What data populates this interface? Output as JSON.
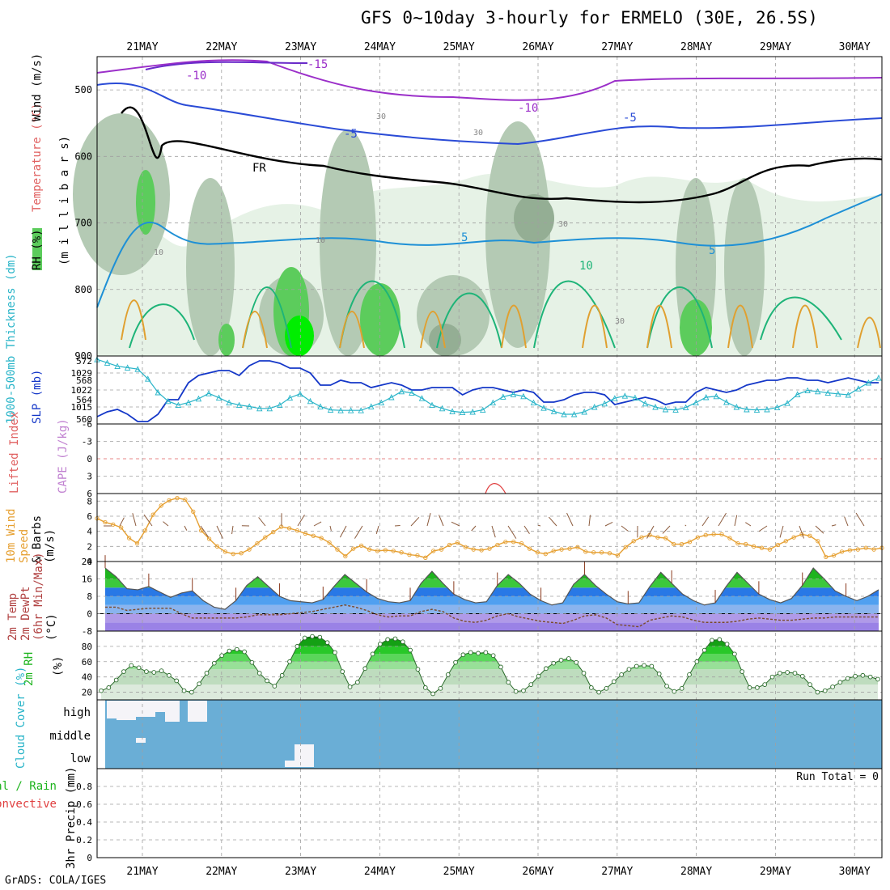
{
  "title": "GFS 0~10day 3-hourly for ERMELO (30E, 26.5S)",
  "footer": "GrADS: COLA/IGES",
  "colors": {
    "rh_light": "#e6f2e6",
    "rh_mid": "#b4cab4",
    "rh_dark": "#94ae94",
    "rh_green": "#5ccc5c",
    "rh_bright": "#00ee00",
    "frame": "#000000",
    "grid": "#a0a0a0",
    "slp": "#1437c8",
    "thickness": "#28b4c8",
    "wind_speed": "#e6a032",
    "cloud": "#6aaed6",
    "temp_fill_purple": "#b09ae8",
    "temp_fill_blue": "#2878e6",
    "temp_fill_green": "#1eb41e",
    "rh2m_dark": "#007800"
  },
  "chart_data": [
    {
      "type": "contour",
      "panel": "upper-air",
      "ylabel_parts": [
        "RH (%)",
        "Temperature (°C)",
        "Wind (m/s)"
      ],
      "ylabel_units": "(m i l l i b a r s)",
      "x_categories": [
        "21MAY",
        "22MAY",
        "23MAY",
        "24MAY",
        "25MAY",
        "26MAY",
        "27MAY",
        "28MAY",
        "29MAY",
        "30MAY"
      ],
      "y_ticks": [
        "500",
        "600",
        "700",
        "800",
        "900"
      ],
      "ylim": [
        450,
        900
      ],
      "contour_labels": [
        "-15",
        "-10",
        "-10",
        "-5",
        "-5",
        "FR",
        "5",
        "5",
        "10",
        "10",
        "10",
        "30",
        "30",
        "30",
        "30"
      ]
    },
    {
      "type": "line",
      "panel": "thickness-slp",
      "ylabel_left": "1000-500mb Thickness (dm)",
      "ylabel_right": "SLP (mb)",
      "y_ticks_thickness": [
        "572",
        "568",
        "564",
        "560"
      ],
      "y_ticks_slp": [
        "1029",
        "1022",
        "1015"
      ],
      "ylim_thickness": [
        559,
        573
      ],
      "ylim_slp": [
        1008,
        1036
      ],
      "series": [
        {
          "name": "SLP (mb)",
          "axis": "slp",
          "values": [
            1011,
            1013,
            1014,
            1012,
            1009,
            1009,
            1012,
            1018,
            1018,
            1025,
            1028,
            1029,
            1030,
            1030,
            1028,
            1032,
            1034,
            1034,
            1033,
            1031,
            1031,
            1029,
            1024,
            1024,
            1026,
            1025,
            1025,
            1023,
            1024,
            1025,
            1024,
            1022,
            1022,
            1023,
            1023,
            1023,
            1020,
            1022,
            1023,
            1023,
            1022,
            1021,
            1022,
            1021,
            1017,
            1017,
            1018,
            1020,
            1021,
            1021,
            1020,
            1016,
            1017,
            1018,
            1019,
            1018,
            1016,
            1017,
            1017,
            1021,
            1023,
            1022,
            1021,
            1022,
            1024,
            1025,
            1026,
            1026,
            1027,
            1027,
            1026,
            1026,
            1025,
            1026,
            1027,
            1026,
            1025,
            1025
          ]
        },
        {
          "name": "1000-500mb Thickness (dm)",
          "axis": "thickness",
          "values": [
            572.3,
            571.6,
            570.9,
            570.6,
            570.3,
            568.3,
            565.5,
            563.7,
            562.9,
            563.4,
            564.2,
            565.3,
            564.4,
            563.4,
            562.9,
            562.6,
            562.2,
            562.2,
            562.9,
            564.4,
            565.2,
            563.7,
            562.6,
            561.9,
            561.8,
            561.8,
            561.8,
            562.6,
            563.4,
            564.5,
            565.7,
            565.4,
            564.3,
            562.9,
            562.2,
            561.6,
            561.4,
            561.5,
            561.9,
            563.4,
            564.6,
            565.1,
            564.7,
            563.4,
            562.3,
            561.6,
            561.0,
            561.0,
            561.5,
            562.5,
            563.2,
            564.3,
            564.8,
            564.4,
            563.2,
            562.5,
            562.0,
            561.9,
            562.4,
            563.4,
            564.5,
            564.7,
            563.5,
            562.5,
            562.0,
            561.9,
            562.0,
            562.4,
            563.3,
            565.1,
            565.9,
            565.7,
            565.4,
            565.2,
            565.0,
            566.3,
            567.5,
            568.5
          ]
        }
      ]
    },
    {
      "type": "line",
      "panel": "lifted-index-cape",
      "ylabel_left": "Lifted Index",
      "ylabel_right": "CAPE (J/kg)",
      "y_ticks": [
        "-6",
        "-3",
        "0",
        "3",
        "6"
      ],
      "ylim": [
        -6,
        6
      ]
    },
    {
      "type": "line",
      "panel": "10m-wind",
      "ylabel_parts": [
        "10m Wind",
        "Speed",
        "& Barbs",
        "(m/s)"
      ],
      "y_ticks": [
        "8",
        "6",
        "4",
        "2",
        "0"
      ],
      "ylim": [
        0,
        9
      ],
      "series": [
        {
          "name": "Speed",
          "values": [
            5.7,
            5.2,
            4.9,
            4.5,
            3.1,
            2.4,
            4.1,
            6.2,
            7.4,
            8.1,
            8.4,
            8.2,
            6.6,
            4.1,
            3.0,
            2.0,
            1.3,
            1.0,
            1.1,
            1.6,
            2.4,
            3.2,
            3.9,
            4.6,
            4.4,
            4.1,
            3.7,
            3.4,
            3.1,
            2.5,
            1.6,
            0.7,
            1.7,
            2.1,
            1.6,
            1.4,
            1.5,
            1.4,
            1.2,
            0.9,
            0.8,
            0.5,
            1.4,
            1.6,
            2.2,
            2.5,
            1.9,
            1.6,
            1.5,
            1.7,
            2.2,
            2.6,
            2.6,
            2.4,
            1.7,
            1.2,
            1.0,
            1.4,
            1.6,
            1.7,
            1.9,
            1.3,
            1.2,
            1.2,
            1.1,
            0.8,
            1.9,
            2.7,
            3.2,
            3.5,
            3.2,
            3.1,
            2.3,
            2.3,
            2.6,
            3.2,
            3.5,
            3.6,
            3.6,
            3.1,
            2.4,
            2.3,
            2.0,
            1.8,
            1.6,
            2.2,
            2.7,
            3.2,
            3.6,
            3.4,
            2.7,
            0.6,
            0.8,
            1.3,
            1.5,
            1.6,
            1.8,
            1.6,
            1.8
          ]
        }
      ]
    },
    {
      "type": "area",
      "panel": "2m-temp-dewpt",
      "ylabel_parts": [
        "2m Temp",
        "2m DewPt",
        "(6hr Min/Max)",
        "(°C)"
      ],
      "y_ticks": [
        "24",
        "16",
        "8",
        "0",
        "-8"
      ],
      "ylim": [
        -8,
        24
      ],
      "series": [
        {
          "name": "2m Temp",
          "values": [
            21,
            17,
            11.5,
            11,
            12.5,
            10,
            7.5,
            9.5,
            10.5,
            6,
            3,
            2,
            6,
            13,
            17,
            12.5,
            8,
            6,
            5.5,
            5,
            6.5,
            12.5,
            18,
            14,
            10,
            7,
            5.5,
            5,
            6,
            14,
            19.5,
            14,
            9,
            6.5,
            5,
            5.5,
            13,
            18,
            14,
            9,
            6,
            4,
            5,
            13.5,
            18,
            13,
            9,
            5.5,
            4.5,
            5,
            12.5,
            19,
            14,
            9,
            6,
            4,
            5,
            12.5,
            19,
            14,
            9,
            6.5,
            5,
            7,
            13,
            21,
            16,
            10.5,
            8,
            6,
            8,
            11
          ]
        },
        {
          "name": "2m DewPt",
          "values": [
            3,
            3,
            1.5,
            2,
            2.5,
            2.5,
            2.5,
            0,
            -2,
            -2,
            -2,
            -2,
            -2,
            -1.5,
            -0.5,
            -0.5,
            -0.5,
            0,
            0.5,
            1,
            2,
            3,
            4,
            3,
            1.5,
            -0.5,
            -1.5,
            -1,
            -1,
            1,
            2,
            1,
            -2,
            -3.5,
            -4,
            -3,
            -1,
            0,
            -1.5,
            -2.5,
            -3.5,
            -4,
            -4.5,
            -3,
            -1,
            -0.5,
            -2,
            -5,
            -5.5,
            -6,
            -3,
            -2,
            -1,
            -1.5,
            -3,
            -4,
            -4,
            -4,
            -3.5,
            -2.5,
            -2,
            -2.5,
            -3,
            -3,
            -2.5,
            -2,
            -2,
            -1.5,
            -1.5,
            -1.5,
            -1.5,
            -1.5
          ]
        }
      ]
    },
    {
      "type": "area",
      "panel": "2m-rh",
      "ylabel_parts": [
        "2m RH",
        "(%)"
      ],
      "y_ticks": [
        "80",
        "60",
        "40",
        "20"
      ],
      "ylim": [
        10,
        100
      ],
      "series": [
        {
          "name": "2m RH",
          "values": [
            22,
            26,
            36,
            47,
            55,
            52,
            47,
            46,
            48,
            42,
            35,
            22,
            20,
            31,
            45,
            58,
            68,
            74,
            76,
            73,
            59,
            45,
            35,
            28,
            42,
            60,
            80,
            91,
            93,
            92,
            85,
            72,
            47,
            27,
            33,
            51,
            70,
            83,
            89,
            90,
            86,
            75,
            50,
            26,
            18,
            25,
            43,
            59,
            69,
            72,
            71,
            72,
            68,
            53,
            33,
            21,
            22,
            30,
            41,
            51,
            58,
            62,
            64,
            59,
            45,
            26,
            20,
            25,
            34,
            43,
            50,
            54,
            55,
            54,
            44,
            28,
            21,
            25,
            43,
            60,
            75,
            88,
            89,
            83,
            70,
            47,
            26,
            26,
            30,
            40,
            45,
            46,
            45,
            41,
            30,
            20,
            22,
            27,
            33,
            38,
            41,
            42,
            40,
            37
          ]
        }
      ]
    },
    {
      "type": "heatmap",
      "panel": "cloud-cover",
      "ylabel": "Cloud Cover (%)",
      "rows": [
        "high",
        "middle",
        "low"
      ]
    },
    {
      "type": "bar",
      "panel": "3hr-precip",
      "ylabel_parts": [
        "Total / Rain",
        "Convective",
        "3hr Precip (mm)"
      ],
      "y_ticks": [
        "0.8",
        "0.6",
        "0.4",
        "0.2",
        "0"
      ],
      "ylim": [
        0,
        1
      ],
      "annotation": "Run Total = 0",
      "values": []
    }
  ]
}
